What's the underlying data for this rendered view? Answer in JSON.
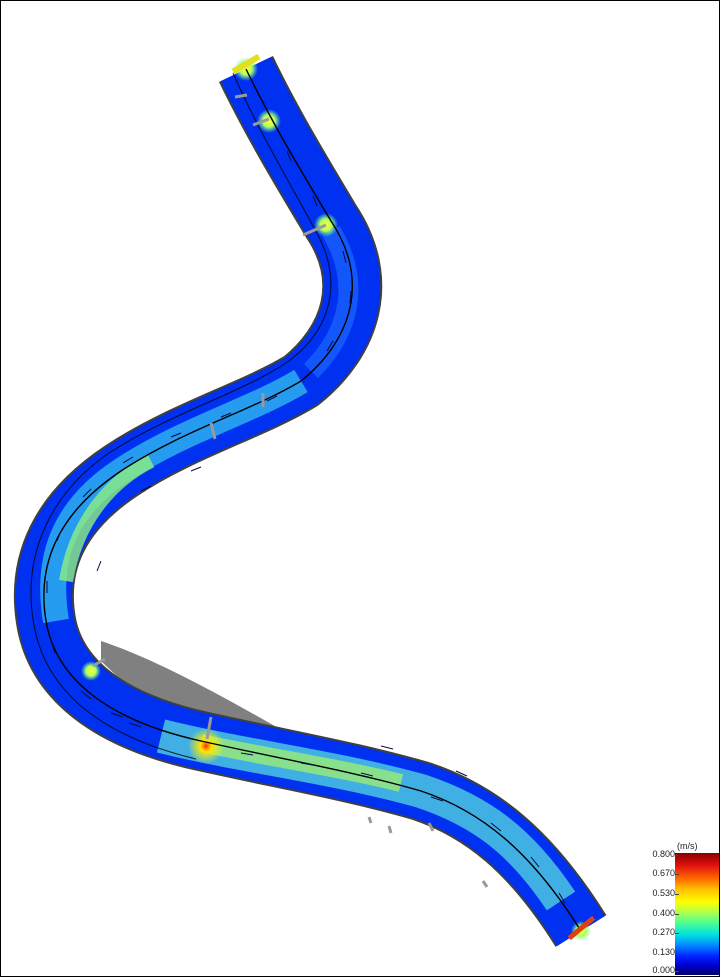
{
  "legend": {
    "unit": "(m/s)",
    "ticks": [
      "0.800",
      "0.670",
      "0.530",
      "0.400",
      "0.270",
      "0.130",
      "0.000"
    ]
  },
  "colors": {
    "low": "#0000d0",
    "mid": "#00e0e0",
    "high": "#ffff00",
    "max": "#8a0000",
    "bank": "#5a5a5a",
    "centerline": "#000000"
  }
}
